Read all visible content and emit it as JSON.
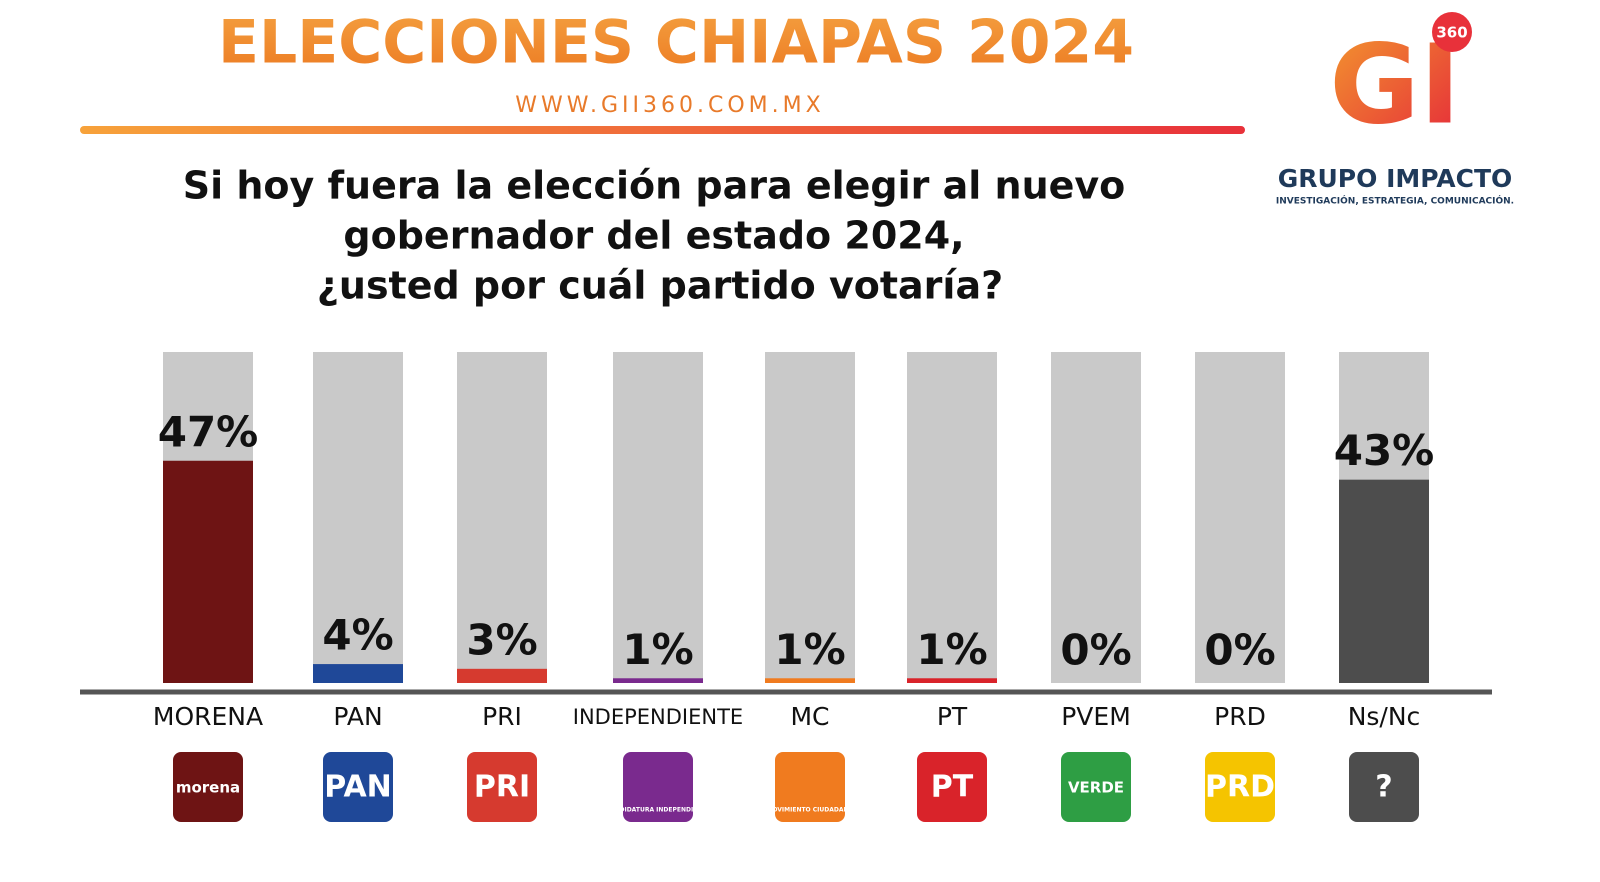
{
  "chart_data": {
    "type": "bar",
    "title": "ELECCIONES CHIAPAS 2024",
    "subtitle": "WWW.GII360.COM.MX",
    "question": [
      "Si hoy fuera la elección para elegir al nuevo",
      "gobernador del estado 2024,",
      "¿usted por cuál partido votaría?"
    ],
    "brand": {
      "mark": "GI",
      "badge": "360",
      "name": "GRUPO IMPACTO",
      "tagline": "INVESTIGACIÓN, ESTRATEGIA, COMUNICACIÓN."
    },
    "categories": [
      "MORENA",
      "PAN",
      "PRI",
      "INDEPENDIENTE",
      "MC",
      "PT",
      "PVEM",
      "PRD",
      "Ns/Nc"
    ],
    "values": [
      47,
      4,
      3,
      1,
      1,
      1,
      0,
      0,
      43
    ],
    "value_labels": [
      "47%",
      "4%",
      "3%",
      "1%",
      "1%",
      "1%",
      "0%",
      "0%",
      "43%"
    ],
    "colors": [
      "#6e1414",
      "#1f4898",
      "#d63a2f",
      "#7a2a8e",
      "#f07b1f",
      "#d9232a",
      "#2e9e44",
      "#f5c400",
      "#4d4d4d"
    ],
    "logos": [
      "morena",
      "PAN",
      "PRI",
      "CANDIDATURA INDEPENDIENTE",
      "MOVIMIENTO CIUDADANO",
      "PT",
      "VERDE",
      "PRD",
      "?"
    ],
    "ylim": [
      0,
      70
    ]
  }
}
